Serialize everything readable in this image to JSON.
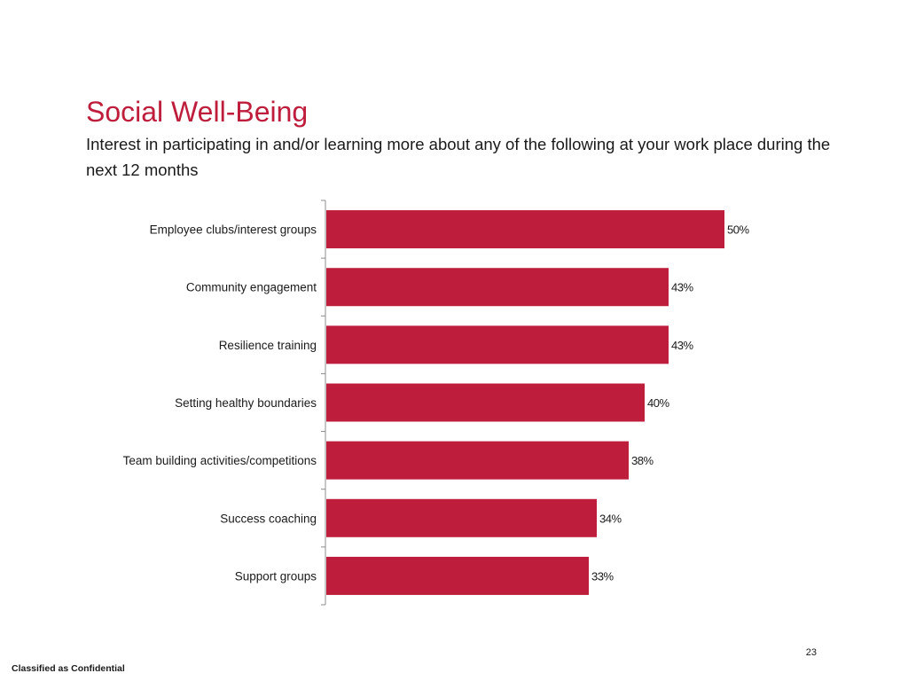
{
  "slide": {
    "title": "Social Well-Being",
    "subtitle": "Interest in participating in and/or learning more about any of the following at your work place during the next 12 months",
    "page_number": "23",
    "footer": "Classified as Confidential"
  },
  "colors": {
    "accent": "#be1e3c",
    "bar": "#be1e3c",
    "axis": "#8c8c8c",
    "text": "#1a1a1a"
  },
  "chart_data": {
    "type": "bar",
    "orientation": "horizontal",
    "categories": [
      "Employee clubs/interest groups",
      "Community engagement",
      "Resilience training",
      "Setting healthy boundaries",
      "Team building activities/competitions",
      "Success coaching",
      "Support groups"
    ],
    "values": [
      50,
      43,
      43,
      40,
      38,
      34,
      33
    ],
    "value_labels": [
      "50%",
      "43%",
      "43%",
      "40%",
      "38%",
      "34%",
      "33%"
    ],
    "unit": "%",
    "xlim": [
      0,
      55
    ],
    "grid": false,
    "legend": "none"
  }
}
